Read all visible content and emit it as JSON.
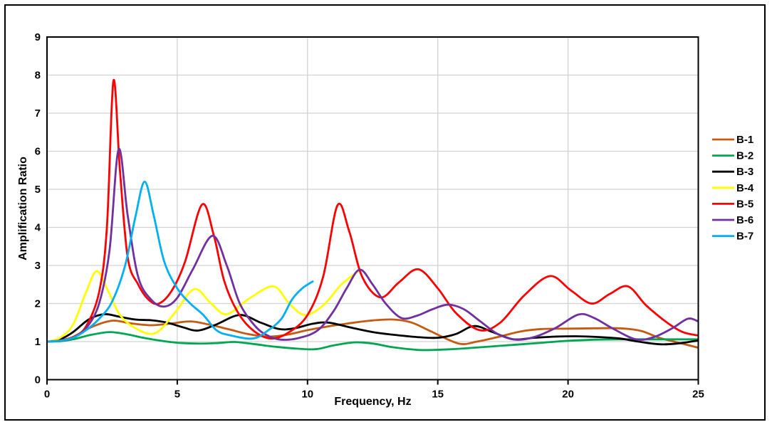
{
  "figure": {
    "background": "#ffffff",
    "border_color": "#000000"
  },
  "chart_data": {
    "type": "line",
    "title": "",
    "xlabel": "Frequency, Hz",
    "ylabel": "Amplification Ratio",
    "xlim": [
      0,
      25
    ],
    "ylim": [
      0,
      9
    ],
    "x_ticks": [
      0,
      5,
      10,
      15,
      20,
      25
    ],
    "y_ticks": [
      0,
      1,
      2,
      3,
      4,
      5,
      6,
      7,
      8,
      9
    ],
    "grid": true,
    "gridline_color": "#d2d2d2",
    "axis_color": "#000000",
    "legend_position": "right-outside",
    "series": [
      {
        "name": "B-1",
        "color": "#C55A11",
        "points": [
          [
            0,
            1.0
          ],
          [
            0.5,
            1.03
          ],
          [
            1,
            1.12
          ],
          [
            1.7,
            1.38
          ],
          [
            2.5,
            1.55
          ],
          [
            3.2,
            1.48
          ],
          [
            4,
            1.43
          ],
          [
            4.7,
            1.47
          ],
          [
            5.5,
            1.53
          ],
          [
            6.2,
            1.45
          ],
          [
            7,
            1.32
          ],
          [
            7.7,
            1.2
          ],
          [
            8.5,
            1.13
          ],
          [
            9.2,
            1.18
          ],
          [
            10,
            1.3
          ],
          [
            10.8,
            1.4
          ],
          [
            11.6,
            1.48
          ],
          [
            12.4,
            1.55
          ],
          [
            13.3,
            1.58
          ],
          [
            14,
            1.5
          ],
          [
            14.7,
            1.28
          ],
          [
            15.8,
            0.95
          ],
          [
            16.5,
            1.0
          ],
          [
            17.3,
            1.12
          ],
          [
            18.2,
            1.27
          ],
          [
            19,
            1.33
          ],
          [
            20,
            1.34
          ],
          [
            21,
            1.35
          ],
          [
            22,
            1.35
          ],
          [
            22.8,
            1.28
          ],
          [
            23.5,
            1.1
          ],
          [
            24.2,
            0.98
          ],
          [
            25,
            0.84
          ]
        ]
      },
      {
        "name": "B-2",
        "color": "#00A651",
        "points": [
          [
            0,
            1.0
          ],
          [
            0.5,
            1.01
          ],
          [
            1,
            1.06
          ],
          [
            1.7,
            1.18
          ],
          [
            2.4,
            1.25
          ],
          [
            3,
            1.2
          ],
          [
            3.7,
            1.1
          ],
          [
            4.4,
            1.02
          ],
          [
            5,
            0.97
          ],
          [
            5.7,
            0.95
          ],
          [
            6.5,
            0.96
          ],
          [
            7.2,
            0.99
          ],
          [
            8,
            0.93
          ],
          [
            8.7,
            0.87
          ],
          [
            9.5,
            0.82
          ],
          [
            10.3,
            0.8
          ],
          [
            11,
            0.9
          ],
          [
            11.8,
            0.98
          ],
          [
            12.5,
            0.95
          ],
          [
            13.3,
            0.85
          ],
          [
            14.3,
            0.78
          ],
          [
            15.2,
            0.79
          ],
          [
            16,
            0.82
          ],
          [
            17,
            0.87
          ],
          [
            18,
            0.92
          ],
          [
            19,
            0.97
          ],
          [
            20,
            1.02
          ],
          [
            21,
            1.05
          ],
          [
            22,
            1.06
          ],
          [
            23,
            1.06
          ],
          [
            24,
            1.06
          ],
          [
            25,
            1.06
          ]
        ]
      },
      {
        "name": "B-3",
        "color": "#000000",
        "points": [
          [
            0,
            1.0
          ],
          [
            0.5,
            1.06
          ],
          [
            1,
            1.25
          ],
          [
            1.6,
            1.58
          ],
          [
            2.2,
            1.72
          ],
          [
            2.8,
            1.65
          ],
          [
            3.4,
            1.58
          ],
          [
            4,
            1.56
          ],
          [
            4.6,
            1.5
          ],
          [
            5.2,
            1.38
          ],
          [
            5.8,
            1.29
          ],
          [
            6.5,
            1.45
          ],
          [
            7.4,
            1.7
          ],
          [
            8.2,
            1.5
          ],
          [
            8.9,
            1.33
          ],
          [
            9.5,
            1.35
          ],
          [
            10.2,
            1.47
          ],
          [
            10.8,
            1.5
          ],
          [
            11.6,
            1.38
          ],
          [
            12.5,
            1.25
          ],
          [
            13.3,
            1.18
          ],
          [
            14.2,
            1.12
          ],
          [
            15,
            1.1
          ],
          [
            15.7,
            1.2
          ],
          [
            16.4,
            1.41
          ],
          [
            17.1,
            1.25
          ],
          [
            17.9,
            1.06
          ],
          [
            18.7,
            1.1
          ],
          [
            19.5,
            1.13
          ],
          [
            20.3,
            1.14
          ],
          [
            21.2,
            1.12
          ],
          [
            22,
            1.08
          ],
          [
            22.7,
            1.0
          ],
          [
            23.5,
            0.93
          ],
          [
            24.2,
            0.95
          ],
          [
            25,
            1.03
          ]
        ]
      },
      {
        "name": "B-4",
        "color": "#FFFF00",
        "points": [
          [
            0,
            1.0
          ],
          [
            0.5,
            1.1
          ],
          [
            1,
            1.45
          ],
          [
            1.5,
            2.3
          ],
          [
            1.9,
            2.85
          ],
          [
            2.3,
            2.4
          ],
          [
            2.8,
            1.7
          ],
          [
            3.4,
            1.35
          ],
          [
            4.15,
            1.22
          ],
          [
            4.9,
            1.75
          ],
          [
            5.65,
            2.38
          ],
          [
            6.3,
            2.0
          ],
          [
            6.9,
            1.72
          ],
          [
            7.8,
            2.15
          ],
          [
            8.7,
            2.45
          ],
          [
            9.3,
            2.0
          ],
          [
            9.9,
            1.7
          ],
          [
            10.6,
            1.95
          ],
          [
            11.3,
            2.5
          ],
          [
            11.95,
            2.85
          ]
        ]
      },
      {
        "name": "B-5",
        "color": "#FF0000",
        "points": [
          [
            0,
            1.0
          ],
          [
            0.5,
            1.03
          ],
          [
            1,
            1.12
          ],
          [
            1.5,
            1.4
          ],
          [
            2,
            2.3
          ],
          [
            2.3,
            4.0
          ],
          [
            2.55,
            7.85
          ],
          [
            2.8,
            5.5
          ],
          [
            3.1,
            3.2
          ],
          [
            3.5,
            2.5
          ],
          [
            3.9,
            2.1
          ],
          [
            4.3,
            2.0
          ],
          [
            4.8,
            2.35
          ],
          [
            5.3,
            3.1
          ],
          [
            5.95,
            4.6
          ],
          [
            6.4,
            3.8
          ],
          [
            6.8,
            2.6
          ],
          [
            7.3,
            1.8
          ],
          [
            7.9,
            1.3
          ],
          [
            8.6,
            1.08
          ],
          [
            9.3,
            1.25
          ],
          [
            10,
            1.7
          ],
          [
            10.6,
            2.7
          ],
          [
            11.15,
            4.58
          ],
          [
            11.6,
            3.9
          ],
          [
            12.1,
            2.7
          ],
          [
            12.8,
            2.16
          ],
          [
            13.5,
            2.55
          ],
          [
            14.25,
            2.9
          ],
          [
            15,
            2.4
          ],
          [
            15.7,
            1.75
          ],
          [
            16.6,
            1.3
          ],
          [
            17.4,
            1.5
          ],
          [
            18.3,
            2.2
          ],
          [
            19.3,
            2.72
          ],
          [
            20.1,
            2.35
          ],
          [
            20.9,
            2.0
          ],
          [
            21.6,
            2.25
          ],
          [
            22.3,
            2.45
          ],
          [
            23,
            1.95
          ],
          [
            23.8,
            1.5
          ],
          [
            24.4,
            1.25
          ],
          [
            25,
            1.16
          ]
        ]
      },
      {
        "name": "B-6",
        "color": "#7030A0",
        "points": [
          [
            0,
            1.0
          ],
          [
            0.5,
            1.02
          ],
          [
            1,
            1.1
          ],
          [
            1.5,
            1.35
          ],
          [
            2,
            2.0
          ],
          [
            2.4,
            3.4
          ],
          [
            2.75,
            6.05
          ],
          [
            3.1,
            4.3
          ],
          [
            3.5,
            2.7
          ],
          [
            4,
            2.1
          ],
          [
            4.5,
            1.92
          ],
          [
            5,
            2.15
          ],
          [
            5.6,
            2.9
          ],
          [
            6.35,
            3.78
          ],
          [
            6.9,
            3.0
          ],
          [
            7.4,
            2.0
          ],
          [
            8,
            1.4
          ],
          [
            8.5,
            1.15
          ],
          [
            9,
            1.05
          ],
          [
            9.7,
            1.1
          ],
          [
            10.4,
            1.3
          ],
          [
            11,
            1.8
          ],
          [
            11.5,
            2.4
          ],
          [
            12,
            2.89
          ],
          [
            12.5,
            2.5
          ],
          [
            13,
            2.0
          ],
          [
            13.6,
            1.62
          ],
          [
            14.2,
            1.68
          ],
          [
            14.8,
            1.85
          ],
          [
            15.4,
            1.97
          ],
          [
            16,
            1.85
          ],
          [
            16.6,
            1.55
          ],
          [
            17.3,
            1.2
          ],
          [
            18,
            1.05
          ],
          [
            18.7,
            1.12
          ],
          [
            19.5,
            1.35
          ],
          [
            20.4,
            1.71
          ],
          [
            21,
            1.62
          ],
          [
            21.7,
            1.35
          ],
          [
            22.6,
            1.06
          ],
          [
            23.3,
            1.12
          ],
          [
            24,
            1.35
          ],
          [
            24.6,
            1.6
          ],
          [
            25,
            1.53
          ]
        ]
      },
      {
        "name": "B-7",
        "color": "#00B0F0",
        "points": [
          [
            0,
            1.0
          ],
          [
            0.5,
            1.02
          ],
          [
            1,
            1.1
          ],
          [
            1.5,
            1.3
          ],
          [
            2,
            1.6
          ],
          [
            2.5,
            2.05
          ],
          [
            3,
            3.0
          ],
          [
            3.4,
            4.3
          ],
          [
            3.75,
            5.2
          ],
          [
            4.1,
            4.3
          ],
          [
            4.5,
            3.1
          ],
          [
            5,
            2.4
          ],
          [
            5.5,
            2.0
          ],
          [
            6,
            1.7
          ],
          [
            6.5,
            1.3
          ],
          [
            7,
            1.17
          ],
          [
            7.9,
            1.08
          ],
          [
            8.5,
            1.3
          ],
          [
            9,
            1.6
          ],
          [
            9.4,
            2.1
          ],
          [
            9.8,
            2.4
          ],
          [
            10.2,
            2.58
          ]
        ]
      }
    ]
  }
}
